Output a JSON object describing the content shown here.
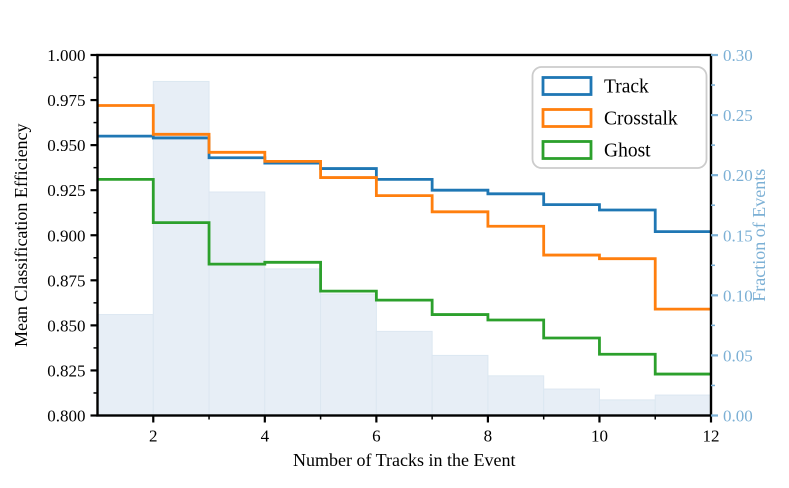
{
  "figure": {
    "background": "#ffffff"
  },
  "chart_data": {
    "type": "line",
    "subtype": "step-histogram-overlay",
    "xlabel": "Number of Tracks in the Event",
    "ylabel_left": "Mean Classification Efficiency",
    "ylabel_right": "Fraction of Events",
    "xlim": [
      1,
      12
    ],
    "ylim_left": [
      0.8,
      1.0
    ],
    "ylim_right": [
      0.0,
      0.3
    ],
    "grid": false,
    "x_edges": [
      1,
      2,
      3,
      4,
      5,
      6,
      7,
      8,
      9,
      10,
      11,
      12
    ],
    "series": [
      {
        "name": "Track",
        "color": "#1f77b4",
        "axis": "left",
        "values": [
          0.955,
          0.954,
          0.943,
          0.94,
          0.937,
          0.931,
          0.925,
          0.923,
          0.917,
          0.914,
          0.902
        ]
      },
      {
        "name": "Crosstalk",
        "color": "#ff7f0e",
        "axis": "left",
        "values": [
          0.972,
          0.956,
          0.946,
          0.941,
          0.932,
          0.922,
          0.913,
          0.905,
          0.889,
          0.887,
          0.859
        ]
      },
      {
        "name": "Ghost",
        "color": "#2ca02c",
        "axis": "left",
        "values": [
          0.931,
          0.907,
          0.884,
          0.885,
          0.869,
          0.864,
          0.856,
          0.853,
          0.843,
          0.834,
          0.823
        ]
      }
    ],
    "histogram": {
      "name": "Fraction of Events",
      "axis": "right",
      "fill_color": "#e7eef6",
      "edge_color": "#dce7f1",
      "values": [
        0.084,
        0.278,
        0.186,
        0.122,
        0.101,
        0.07,
        0.05,
        0.033,
        0.022,
        0.013,
        0.017
      ]
    },
    "x_tick_labels": [
      "2",
      "4",
      "6",
      "8",
      "10",
      "12"
    ],
    "x_tick_values": [
      2,
      4,
      6,
      8,
      10,
      12
    ],
    "x_minor_tick_values": [
      3,
      5,
      7,
      9,
      11
    ],
    "y_left_tick_labels": [
      "1.000",
      "0.975",
      "0.950",
      "0.925",
      "0.900",
      "0.875",
      "0.850",
      "0.825",
      "0.800"
    ],
    "y_left_tick_values": [
      1.0,
      0.975,
      0.95,
      0.925,
      0.9,
      0.875,
      0.85,
      0.825,
      0.8
    ],
    "y_right_tick_labels": [
      "0.30",
      "0.25",
      "0.20",
      "0.15",
      "0.10",
      "0.05",
      "0.00"
    ],
    "y_right_tick_values": [
      0.3,
      0.25,
      0.2,
      0.15,
      0.1,
      0.05,
      0.0
    ],
    "legend": {
      "position": "upper right",
      "entries": [
        "Track",
        "Crosstalk",
        "Ghost"
      ]
    },
    "colors": {
      "spine": "#000000",
      "tick_label": "#000000",
      "right_axis": "#7cb0d5",
      "legend_border": "#cccccc",
      "legend_background": "#ffffff"
    }
  }
}
